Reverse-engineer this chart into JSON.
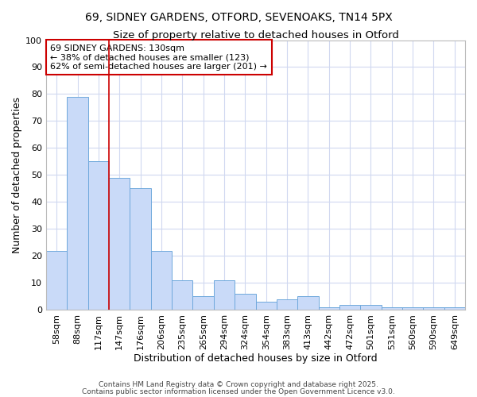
{
  "title1": "69, SIDNEY GARDENS, OTFORD, SEVENOAKS, TN14 5PX",
  "title2": "Size of property relative to detached houses in Otford",
  "xlabel": "Distribution of detached houses by size in Otford",
  "ylabel": "Number of detached properties",
  "bin_labels": [
    "58sqm",
    "88sqm",
    "117sqm",
    "147sqm",
    "176sqm",
    "206sqm",
    "235sqm",
    "265sqm",
    "294sqm",
    "324sqm",
    "354sqm",
    "383sqm",
    "413sqm",
    "442sqm",
    "472sqm",
    "501sqm",
    "531sqm",
    "560sqm",
    "590sqm",
    "649sqm"
  ],
  "bar_values": [
    22,
    79,
    55,
    49,
    45,
    22,
    11,
    5,
    11,
    6,
    3,
    4,
    5,
    1,
    2,
    2,
    1,
    1,
    1,
    1
  ],
  "bar_color": "#c9daf8",
  "bar_edge_color": "#6fa8dc",
  "background_color": "#ffffff",
  "grid_color": "#d0d8f0",
  "red_line_x": 2.5,
  "annotation_text": "69 SIDNEY GARDENS: 130sqm\n← 38% of detached houses are smaller (123)\n62% of semi-detached houses are larger (201) →",
  "annotation_box_facecolor": "#ffffff",
  "annotation_border_color": "#cc0000",
  "ylim": [
    0,
    100
  ],
  "yticks": [
    0,
    10,
    20,
    30,
    40,
    50,
    60,
    70,
    80,
    90,
    100
  ],
  "title1_fontsize": 10,
  "title2_fontsize": 9.5,
  "axis_label_fontsize": 9,
  "tick_fontsize": 8,
  "annot_fontsize": 8,
  "footer1": "Contains HM Land Registry data © Crown copyright and database right 2025.",
  "footer2": "Contains public sector information licensed under the Open Government Licence v3.0."
}
